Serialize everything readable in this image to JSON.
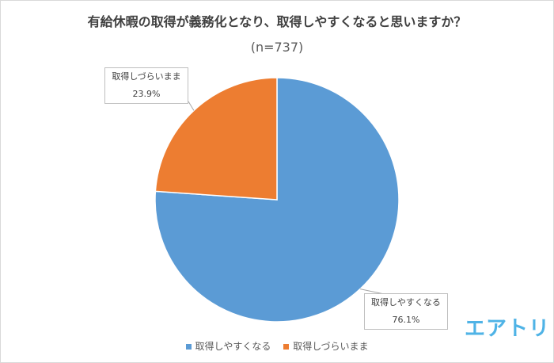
{
  "chart_data": {
    "type": "pie",
    "title": "有給休暇の取得が義務化となり、取得しやすくなると思いますか？",
    "subtitle": "(n=737)",
    "categories": [
      "取得しやすくなる",
      "取得しづらいまま"
    ],
    "values": [
      76.1,
      23.9
    ],
    "value_labels": [
      "76.1%",
      "23.9%"
    ],
    "colors": [
      "#5b9bd5",
      "#ed7d31"
    ],
    "legend_placement": "bottom"
  },
  "logo": {
    "text": "エアトリ",
    "color": "#4fb3e6"
  }
}
